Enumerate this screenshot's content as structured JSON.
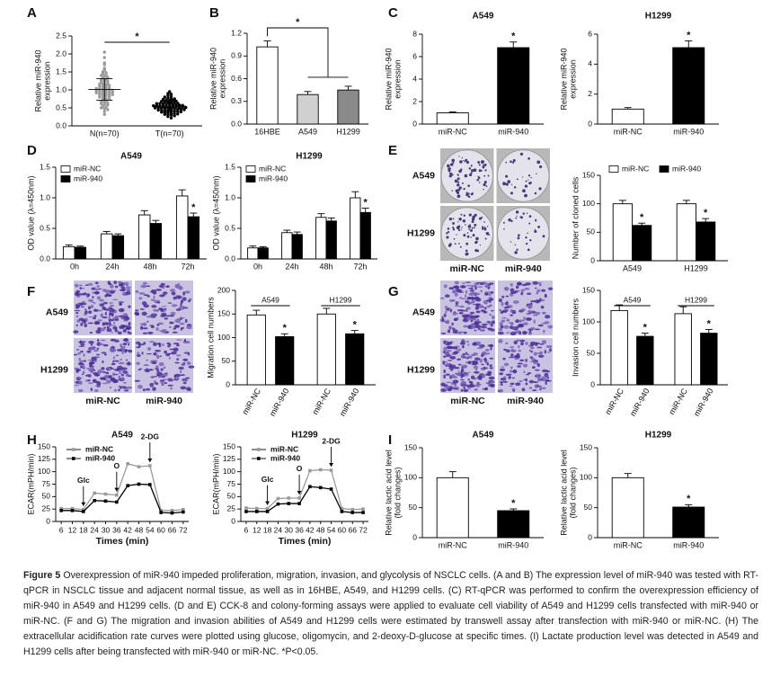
{
  "chart_data": [
    {
      "panel": "A",
      "type": "scatter",
      "ylabel": [
        "Relative miR-940",
        "expression"
      ],
      "categories": [
        "N(n=70)",
        "T(n=70)"
      ],
      "ylim": [
        0,
        2.5
      ],
      "yticks": [
        {
          "value": 0,
          "label": "0.0"
        },
        0.5,
        {
          "value": 1,
          "label": "1.0"
        },
        1.5,
        {
          "value": 2,
          "label": "2.0"
        },
        2.5
      ],
      "significance": "*",
      "series": [
        {
          "color": "#9a9a9a",
          "mean": 1.01,
          "error": 0.3,
          "values": [
            2.05,
            1.9,
            1.75,
            1.7,
            1.6,
            1.55,
            1.5,
            1.48,
            1.45,
            1.42,
            1.4,
            1.38,
            1.35,
            1.33,
            1.3,
            1.28,
            1.26,
            1.25,
            1.22,
            1.2,
            1.18,
            1.16,
            1.15,
            1.13,
            1.12,
            1.1,
            1.08,
            1.07,
            1.05,
            1.04,
            1.03,
            1.02,
            1.01,
            1.0,
            0.99,
            0.98,
            0.97,
            0.96,
            0.95,
            0.94,
            0.93,
            0.92,
            0.91,
            0.9,
            0.89,
            0.88,
            0.87,
            0.86,
            0.85,
            0.84,
            0.82,
            0.8,
            0.78,
            0.76,
            0.75,
            0.73,
            0.7,
            0.68,
            0.66,
            0.64,
            0.62,
            0.6,
            0.58,
            0.55,
            0.52,
            0.5,
            0.48,
            0.45,
            0.4,
            0.32
          ]
        },
        {
          "color": "#000000",
          "mean": 0.55,
          "error": 0.15,
          "values": [
            0.95,
            0.9,
            0.88,
            0.85,
            0.82,
            0.8,
            0.78,
            0.76,
            0.75,
            0.74,
            0.72,
            0.71,
            0.7,
            0.69,
            0.68,
            0.67,
            0.66,
            0.65,
            0.64,
            0.63,
            0.62,
            0.62,
            0.61,
            0.6,
            0.6,
            0.59,
            0.58,
            0.58,
            0.57,
            0.56,
            0.56,
            0.55,
            0.55,
            0.54,
            0.54,
            0.53,
            0.53,
            0.52,
            0.52,
            0.51,
            0.5,
            0.5,
            0.49,
            0.49,
            0.48,
            0.48,
            0.47,
            0.46,
            0.46,
            0.45,
            0.44,
            0.44,
            0.43,
            0.42,
            0.42,
            0.41,
            0.4,
            0.39,
            0.38,
            0.37,
            0.36,
            0.35,
            0.34,
            0.33,
            0.32,
            0.31,
            0.3,
            0.28,
            0.26,
            0.22
          ]
        }
      ]
    },
    {
      "panel": "B",
      "type": "bar",
      "ylabel": [
        "Relative miR-940",
        "expression"
      ],
      "categories": [
        "16HBE",
        "A549",
        "H1299"
      ],
      "values": [
        1.02,
        0.39,
        0.45
      ],
      "errors": [
        0.08,
        0.04,
        0.05
      ],
      "colors": [
        "#ffffff",
        "#d0d0d0",
        "#8a8a8a"
      ],
      "ylim": [
        0,
        1.2
      ],
      "yticks": [
        {
          "value": 0,
          "label": "0.0"
        },
        0.3,
        0.6,
        0.9,
        1.2
      ],
      "significance": "*"
    },
    {
      "panel": "C",
      "type": "bar",
      "title": "A549",
      "ylabel": [
        "Relative miR-940",
        "expression"
      ],
      "categories": [
        "miR-NC",
        "miR-940"
      ],
      "values": [
        1.0,
        6.8
      ],
      "errors": [
        0.08,
        0.5
      ],
      "colors": [
        "#ffffff",
        "#000000"
      ],
      "significant": [
        false,
        true
      ],
      "significance": "*",
      "ylim": [
        0,
        8
      ],
      "yticks": [
        0,
        2,
        4,
        6,
        8
      ]
    },
    {
      "type": "bar",
      "title": "H1299",
      "ylabel": [
        "Relative miR-940",
        "expression"
      ],
      "categories": [
        "miR-NC",
        "miR-940"
      ],
      "values": [
        1.0,
        5.1
      ],
      "errors": [
        0.1,
        0.45
      ],
      "colors": [
        "#ffffff",
        "#000000"
      ],
      "significant": [
        false,
        true
      ],
      "significance": "*",
      "ylim": [
        0,
        6
      ],
      "yticks": [
        0,
        2,
        4,
        6
      ]
    },
    {
      "panel": "D",
      "type": "bar",
      "title": "A549",
      "ylabel": "OD value (λ=450nm)",
      "categories": [
        "0h",
        "24h",
        "48h",
        "72h"
      ],
      "legend": "upper left",
      "significance": "*",
      "series": [
        {
          "name": "miR-NC",
          "color": "#ffffff",
          "values": [
            0.2,
            0.41,
            0.72,
            1.03
          ],
          "errors": [
            0.03,
            0.04,
            0.07,
            0.1
          ],
          "significant": [
            false,
            false,
            false,
            false
          ]
        },
        {
          "name": "miR-940",
          "color": "#000000",
          "values": [
            0.19,
            0.38,
            0.58,
            0.69
          ],
          "errors": [
            0.02,
            0.03,
            0.05,
            0.06
          ],
          "significant": [
            false,
            false,
            false,
            true
          ]
        }
      ],
      "ylim": [
        0,
        1.5
      ],
      "yticks": [
        {
          "value": 0,
          "label": "0.0"
        },
        0.5,
        {
          "value": 1,
          "label": "1.0"
        },
        1.5
      ]
    },
    {
      "type": "bar",
      "title": "H1299",
      "ylabel": "OD value (λ=450nm)",
      "categories": [
        "0h",
        "24h",
        "48h",
        "72h"
      ],
      "legend": "upper left",
      "significance": "*",
      "series": [
        {
          "name": "miR-NC",
          "color": "#ffffff",
          "values": [
            0.18,
            0.43,
            0.68,
            1.0
          ],
          "errors": [
            0.03,
            0.04,
            0.06,
            0.1
          ],
          "significant": [
            false,
            false,
            false,
            false
          ]
        },
        {
          "name": "miR-940",
          "color": "#000000",
          "values": [
            0.18,
            0.4,
            0.62,
            0.76
          ],
          "errors": [
            0.02,
            0.04,
            0.05,
            0.07
          ],
          "significant": [
            false,
            false,
            false,
            true
          ]
        }
      ],
      "ylim": [
        0,
        1.5
      ],
      "yticks": [
        {
          "value": 0,
          "label": "0.0"
        },
        0.5,
        {
          "value": 1,
          "label": "1.0"
        },
        1.5
      ]
    },
    {
      "panel": "E",
      "type": "bar",
      "images": {
        "rows": [
          "A549",
          "H1299"
        ],
        "cols": [
          "miR-NC",
          "miR-940"
        ]
      },
      "ylabel": "Number of cloned cells",
      "categories": [
        "A549",
        "H1299"
      ],
      "legend": "top",
      "significance": "*",
      "series": [
        {
          "name": "miR-NC",
          "color": "#ffffff",
          "values": [
            100,
            100
          ],
          "errors": [
            6,
            6
          ],
          "significant": [
            false,
            false
          ]
        },
        {
          "name": "miR-940",
          "color": "#000000",
          "values": [
            62,
            68
          ],
          "errors": [
            4,
            6
          ],
          "significant": [
            true,
            true
          ]
        }
      ],
      "ylim": [
        0,
        150
      ],
      "yticks": [
        0,
        50,
        100,
        150
      ]
    },
    {
      "panel": "F",
      "type": "bar",
      "images": {
        "rows": [
          "A549",
          "H1299"
        ],
        "cols": [
          "miR-NC",
          "miR-940"
        ]
      },
      "ylabel": "Migration cell numbers",
      "categories": [
        "A549",
        "H1299"
      ],
      "significance": "*",
      "series": [
        {
          "name": "miR-NC",
          "color": "#ffffff",
          "values": [
            148,
            150
          ],
          "errors": [
            10,
            12
          ],
          "significant": [
            false,
            false
          ]
        },
        {
          "name": "miR-940",
          "color": "#000000",
          "values": [
            102,
            108
          ],
          "errors": [
            6,
            7
          ],
          "significant": [
            true,
            true
          ]
        }
      ],
      "ylim": [
        0,
        200
      ],
      "yticks": [
        0,
        50,
        100,
        150,
        200
      ]
    },
    {
      "panel": "G",
      "type": "bar",
      "images": {
        "rows": [
          "A549",
          "H1299"
        ],
        "cols": [
          "miR-NC",
          "miR-940"
        ]
      },
      "ylabel": "Invasion cell numbers",
      "categories": [
        "A549",
        "H1299"
      ],
      "significance": "*",
      "series": [
        {
          "name": "miR-NC",
          "color": "#ffffff",
          "values": [
            118,
            113
          ],
          "errors": [
            9,
            11
          ],
          "significant": [
            false,
            false
          ]
        },
        {
          "name": "miR-940",
          "color": "#000000",
          "values": [
            77,
            82
          ],
          "errors": [
            5,
            6
          ],
          "significant": [
            true,
            true
          ]
        }
      ],
      "ylim": [
        0,
        150
      ],
      "yticks": [
        0,
        50,
        100,
        150
      ]
    },
    {
      "panel": "H",
      "type": "line",
      "title": "A549",
      "xlabel": "Times (min)",
      "ylabel": "ECAR(mPH/min)",
      "legend": "upper left",
      "x": [
        6,
        12,
        18,
        24,
        30,
        36,
        42,
        48,
        54,
        60,
        66,
        72
      ],
      "xlim": [
        3,
        75
      ],
      "xticks": [
        6,
        12,
        18,
        24,
        30,
        36,
        42,
        48,
        54,
        60,
        66,
        72
      ],
      "ylim": [
        0,
        150
      ],
      "yticks": [
        0,
        25,
        50,
        75,
        100,
        125,
        150
      ],
      "annotations": [
        {
          "text": "Glc",
          "x": 18
        },
        {
          "text": "O",
          "x": 36
        },
        {
          "text": "2-DG",
          "x": 54
        }
      ],
      "series": [
        {
          "name": "miR-NC",
          "color": "#9a9a9a",
          "values": [
            26,
            26,
            24,
            57,
            55,
            53,
            116,
            110,
            112,
            22,
            22,
            24
          ]
        },
        {
          "name": "miR-940",
          "color": "#000000",
          "values": [
            22,
            22,
            20,
            42,
            41,
            39,
            72,
            75,
            74,
            18,
            17,
            19
          ]
        }
      ]
    },
    {
      "type": "line",
      "title": "H1299",
      "xlabel": "Times (min)",
      "ylabel": "ECAR(mPH/min)",
      "legend": "upper left",
      "x": [
        6,
        12,
        18,
        24,
        30,
        36,
        42,
        48,
        54,
        60,
        66,
        72
      ],
      "xlim": [
        3,
        75
      ],
      "xticks": [
        6,
        12,
        18,
        24,
        30,
        36,
        42,
        48,
        54,
        60,
        66,
        72
      ],
      "ylim": [
        0,
        150
      ],
      "yticks": [
        0,
        25,
        50,
        75,
        100,
        125,
        150
      ],
      "annotations": [
        {
          "text": "Glc",
          "x": 18
        },
        {
          "text": "O",
          "x": 36
        },
        {
          "text": "2-DG",
          "x": 54
        }
      ],
      "series": [
        {
          "name": "miR-NC",
          "color": "#9a9a9a",
          "values": [
            27,
            26,
            26,
            46,
            47,
            47,
            102,
            104,
            103,
            26,
            24,
            25
          ]
        },
        {
          "name": "miR-940",
          "color": "#000000",
          "values": [
            20,
            20,
            20,
            35,
            36,
            36,
            70,
            68,
            65,
            20,
            18,
            18
          ]
        }
      ]
    },
    {
      "panel": "I",
      "type": "bar",
      "title": "A549",
      "ylabel": [
        "Relative lactic acid level",
        "(fold changes)"
      ],
      "categories": [
        "miR-NC",
        "miR-940"
      ],
      "values": [
        100,
        45
      ],
      "errors": [
        10,
        3
      ],
      "colors": [
        "#ffffff",
        "#000000"
      ],
      "significant": [
        false,
        true
      ],
      "significance": "*",
      "ylim": [
        0,
        150
      ],
      "yticks": [
        0,
        50,
        100,
        150
      ]
    },
    {
      "type": "bar",
      "title": "H1299",
      "ylabel": [
        "Relative lactic acid level",
        "(fold changes)"
      ],
      "categories": [
        "miR-NC",
        "miR-940"
      ],
      "values": [
        100,
        51
      ],
      "errors": [
        7,
        4
      ],
      "colors": [
        "#ffffff",
        "#000000"
      ],
      "significant": [
        false,
        true
      ],
      "significance": "*",
      "ylim": [
        0,
        150
      ],
      "yticks": [
        0,
        50,
        100,
        150
      ]
    }
  ],
  "caption": {
    "label": "Figure 5",
    "text": "Overexpression of miR-940 impeded proliferation, migration, invasion, and glycolysis of NSCLC cells. (A and B) The expression level of miR-940 was tested with RT-qPCR in NSCLC tissue and adjacent normal tissue, as well as in 16HBE, A549, and H1299 cells. (C) RT-qPCR was performed to confirm the overexpression efficiency of miR-940 in A549 and H1299 cells. (D and E) CCK-8 and colony-forming assays were applied to evaluate cell viability of A549 and H1299 cells transfected with miR-940 or miR-NC. (F and G) The migration and invasion abilities of A549 and H1299 cells were estimated by transwell assay after transfection with miR-940 or miR-NC. (H) The extracellular acidification rate curves were plotted using glucose, oligomycin, and 2-deoxy-D-glucose at specific times. (I) Lactate production level was detected in A549 and H1299 cells after being transfected with miR-940 or miR-NC. *P<0.05."
  }
}
